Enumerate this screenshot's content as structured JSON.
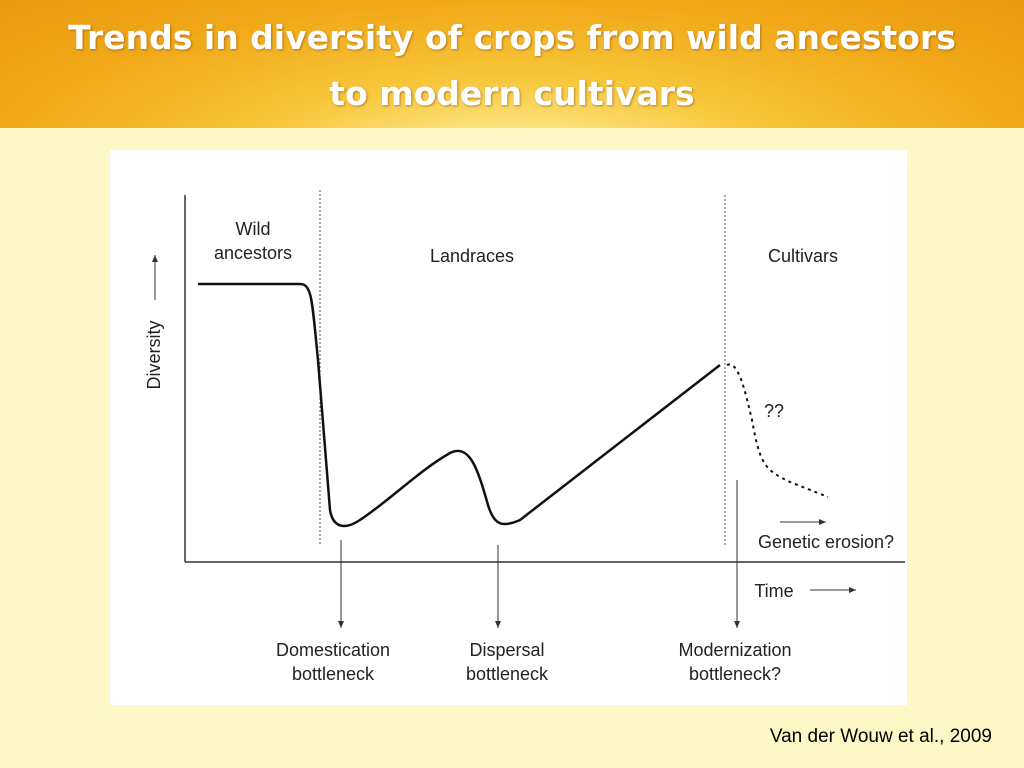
{
  "header": {
    "title": [
      "Trends in diversity of crops from wild ancestors",
      "to modern cultivars"
    ]
  },
  "diagram": {
    "y_axis_label": "Diversity",
    "x_axis_label": "Time",
    "phases": [
      [
        "Wild",
        "ancestors"
      ],
      [
        "Landraces"
      ],
      [
        "Cultivars"
      ]
    ],
    "uncertainty": "??",
    "trend_note": "Genetic erosion?",
    "bottlenecks": [
      [
        "Domestication",
        "bottleneck"
      ],
      [
        "Dispersal",
        "bottleneck"
      ],
      [
        "Modernization",
        "bottleneck?"
      ]
    ]
  },
  "citation": "Van der Wouw et al., 2009"
}
